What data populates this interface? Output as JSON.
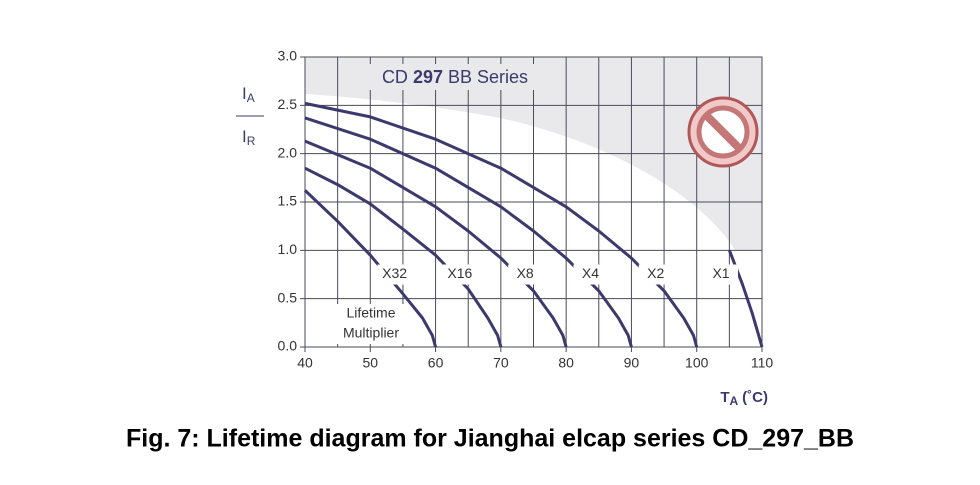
{
  "chart_data": {
    "type": "line",
    "title": [
      "CD",
      "297",
      "BB Series"
    ],
    "ylabel_top": [
      "I",
      "A"
    ],
    "ylabel_bottom": [
      "I",
      "R"
    ],
    "xlabel": [
      "T",
      "A",
      "(˚C)"
    ],
    "annotation": [
      "Lifetime",
      "Multiplier"
    ],
    "caption": "Fig. 7: Lifetime diagram for Jianghai elcap series CD_297_BB",
    "xlim": [
      40,
      110
    ],
    "xticks": [
      40,
      50,
      60,
      70,
      80,
      90,
      100,
      110
    ],
    "xminorticks": [
      45,
      55,
      65,
      75,
      85,
      95,
      105
    ],
    "ylim": [
      0,
      3
    ],
    "yticks": [
      {
        "value": 0,
        "label": "0.0"
      },
      0.5,
      {
        "value": 1,
        "label": "1.0"
      },
      1.5,
      {
        "value": 2,
        "label": "2.0"
      },
      2.5,
      {
        "value": 3,
        "label": "3.0"
      }
    ],
    "grid": true,
    "series": [
      {
        "name": "X32",
        "color": "#3c3a6c",
        "x": [
          40,
          45,
          50,
          55,
          58,
          59.5,
          60
        ],
        "values": [
          1.62,
          1.3,
          0.95,
          0.55,
          0.3,
          0.12,
          0
        ]
      },
      {
        "name": "X16",
        "color": "#3c3a6c",
        "x": [
          40,
          45,
          50,
          55,
          60,
          65,
          68,
          69.5,
          70
        ],
        "values": [
          1.85,
          1.68,
          1.48,
          1.22,
          0.95,
          0.6,
          0.3,
          0.12,
          0
        ]
      },
      {
        "name": "X8",
        "color": "#3c3a6c",
        "x": [
          40,
          50,
          60,
          65,
          70,
          75,
          78,
          79.5,
          80
        ],
        "values": [
          2.13,
          1.85,
          1.45,
          1.2,
          0.92,
          0.58,
          0.3,
          0.12,
          0
        ]
      },
      {
        "name": "X4",
        "color": "#3c3a6c",
        "x": [
          40,
          50,
          60,
          70,
          75,
          80,
          85,
          88,
          89.5,
          90
        ],
        "values": [
          2.37,
          2.15,
          1.85,
          1.45,
          1.2,
          0.92,
          0.58,
          0.3,
          0.12,
          0
        ]
      },
      {
        "name": "X2",
        "color": "#3c3a6c",
        "x": [
          40,
          50,
          60,
          70,
          80,
          85,
          90,
          95,
          98,
          99.5,
          100
        ],
        "values": [
          2.52,
          2.38,
          2.15,
          1.85,
          1.45,
          1.2,
          0.92,
          0.58,
          0.3,
          0.12,
          0
        ]
      },
      {
        "name": "X1",
        "color": "#3c3a6c",
        "x": [
          105,
          107,
          108.5,
          109.5,
          110
        ],
        "values": [
          1.0,
          0.65,
          0.35,
          0.12,
          0
        ]
      }
    ]
  }
}
